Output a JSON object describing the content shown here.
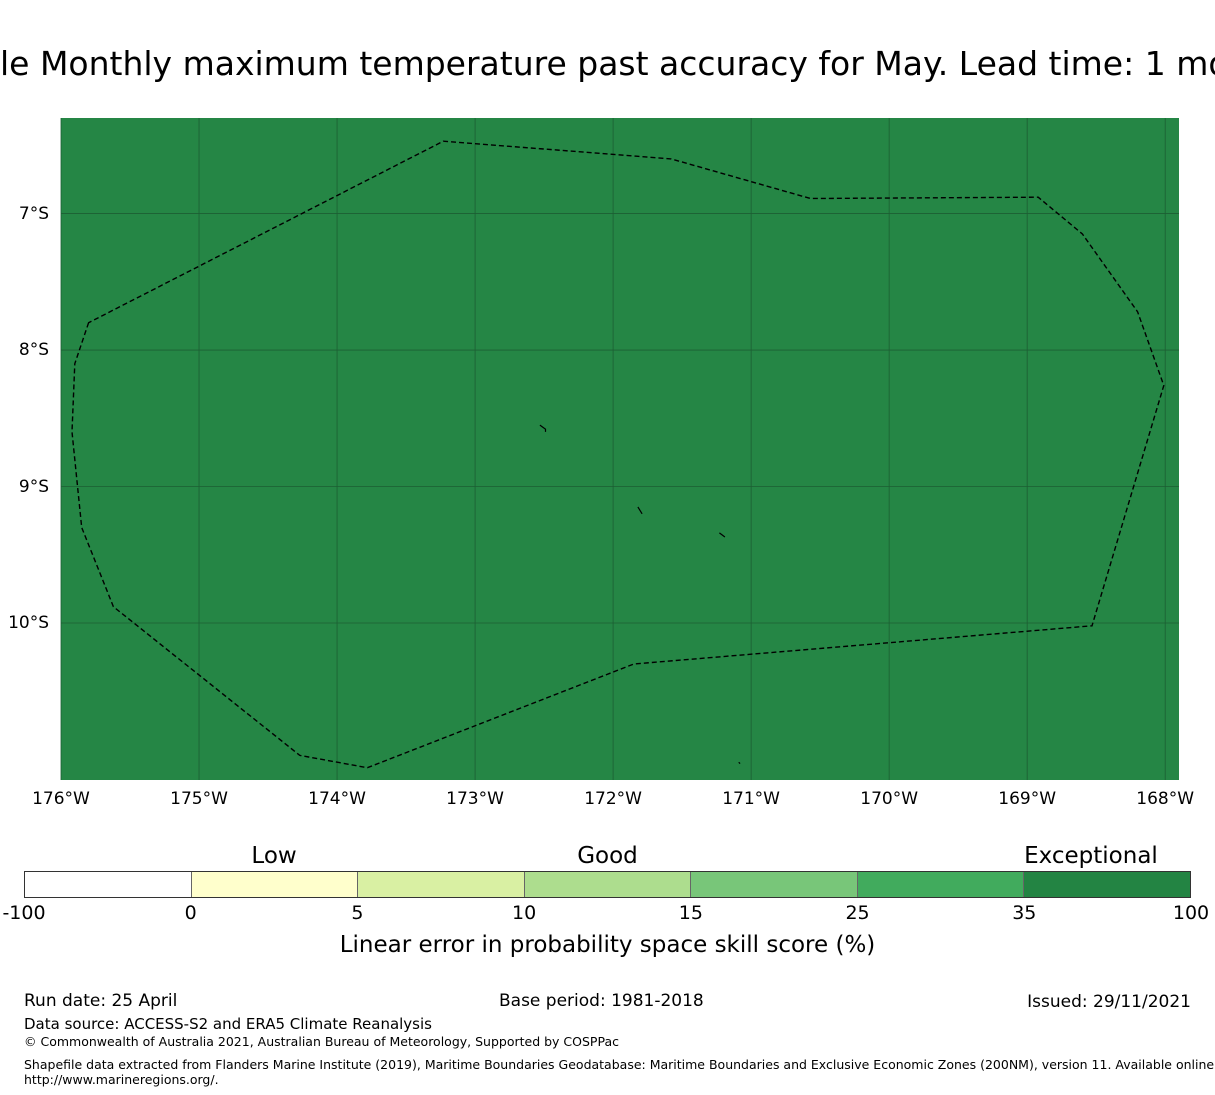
{
  "title": "le Monthly maximum temperature past accuracy for May. Lead time: 1 mo",
  "map": {
    "fill_color": "#258645",
    "lat_labels": [
      {
        "lat": -7,
        "label": "7°S"
      },
      {
        "lat": -8,
        "label": "8°S"
      },
      {
        "lat": -9,
        "label": "9°S"
      },
      {
        "lat": -10,
        "label": "10°S"
      }
    ],
    "lon_labels": [
      {
        "lon": -176,
        "label": "176°W"
      },
      {
        "lon": -175,
        "label": "175°W"
      },
      {
        "lon": -174,
        "label": "174°W"
      },
      {
        "lon": -173,
        "label": "173°W"
      },
      {
        "lon": -172,
        "label": "172°W"
      },
      {
        "lon": -171,
        "label": "171°W"
      },
      {
        "lon": -170,
        "label": "170°W"
      },
      {
        "lon": -169,
        "label": "169°W"
      },
      {
        "lon": -168,
        "label": "168°W"
      }
    ],
    "lon_range": [
      -176,
      -167.9
    ],
    "lat_range": [
      -11.15,
      -6.3
    ],
    "eez_boundary": [
      [
        -175.8,
        -7.8
      ],
      [
        -175.9,
        -8.1
      ],
      [
        -175.92,
        -8.6
      ],
      [
        -175.85,
        -9.3
      ],
      [
        -175.62,
        -9.88
      ],
      [
        -174.27,
        -10.97
      ],
      [
        -173.78,
        -11.06
      ],
      [
        -171.85,
        -10.3
      ],
      [
        -168.53,
        -10.02
      ],
      [
        -168.01,
        -8.26
      ],
      [
        -168.2,
        -7.72
      ],
      [
        -168.6,
        -7.15
      ],
      [
        -168.92,
        -6.88
      ],
      [
        -170.57,
        -6.89
      ],
      [
        -171.58,
        -6.6
      ],
      [
        -173.23,
        -6.47
      ]
    ],
    "islands": [
      [
        [
          -172.53,
          -8.55
        ],
        [
          -172.49,
          -8.58
        ],
        [
          -172.49,
          -8.6
        ]
      ],
      [
        [
          -171.82,
          -9.15
        ],
        [
          -171.79,
          -9.2
        ]
      ],
      [
        [
          -171.23,
          -9.34
        ],
        [
          -171.19,
          -9.37
        ]
      ],
      [
        [
          -171.09,
          -11.02
        ],
        [
          -171.08,
          -11.03
        ]
      ]
    ]
  },
  "colorbar": {
    "colors": [
      "#ffffff",
      "#ffffcc",
      "#d9f0a3",
      "#addd8e",
      "#78c679",
      "#41ab5d",
      "#238443"
    ],
    "ticks": [
      "-100",
      "0",
      "5",
      "10",
      "15",
      "25",
      "35",
      "100"
    ],
    "categories": [
      {
        "label": "Low",
        "segment": 1.5
      },
      {
        "label": "Good",
        "segment": 3.5
      },
      {
        "label": "Exceptional",
        "segment": 6.4
      }
    ],
    "label": "Linear error in probability space skill score (%)"
  },
  "footer": {
    "run_date": "Run date: 25 April",
    "base_period": "Base period: 1981-2018",
    "issued": "Issued: 29/11/2021",
    "data_source": "Data source: ACCESS-S2 and ERA5 Climate Reanalysis",
    "copyright": "© Commonwealth of Australia 2021, Australian Bureau of Meteorology, Supported by COSPPac",
    "shapefile_line1": "Shapefile data extracted from Flanders Marine Institute (2019), Maritime Boundaries Geodatabase: Maritime Boundaries and Exclusive Economic Zones (200NM), version 11. Available online at",
    "shapefile_line2": "http://www.marineregions.org/."
  }
}
